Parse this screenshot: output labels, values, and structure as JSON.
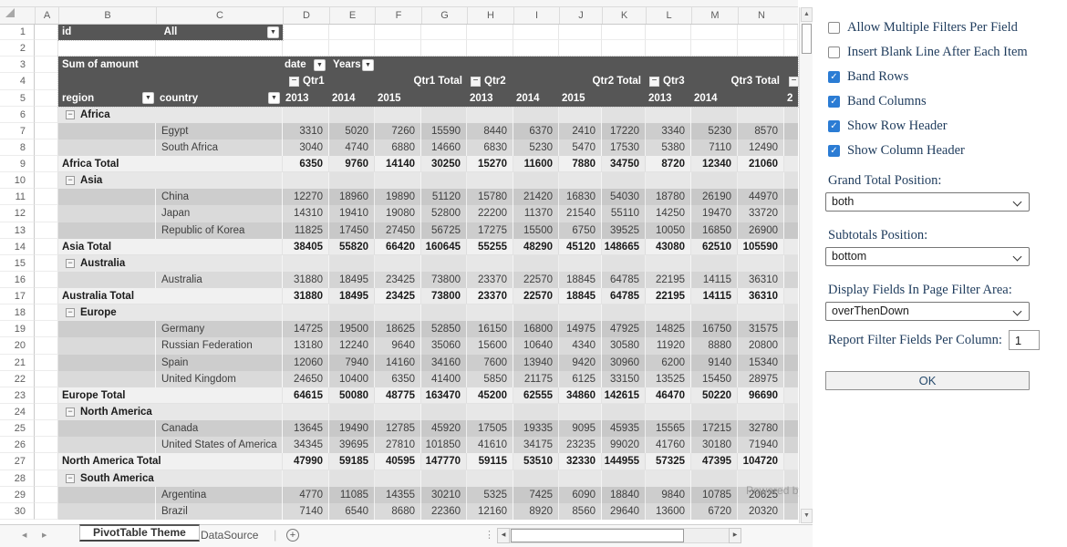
{
  "sheet": {
    "column_letters": [
      "A",
      "B",
      "C",
      "D",
      "E",
      "F",
      "G",
      "H",
      "I",
      "J",
      "K",
      "L",
      "M",
      "N"
    ],
    "row_count": 30,
    "page_filter": {
      "field": "id",
      "value": "All"
    },
    "pivot": {
      "measure": "Sum of amount",
      "column_field": "date",
      "column_subfield": "Years",
      "row_field_1": "region",
      "row_field_2": "country",
      "quarters": [
        {
          "label": "Qtr1",
          "years": [
            "2013",
            "2014",
            "2015"
          ],
          "total_label": "Qtr1 Total"
        },
        {
          "label": "Qtr2",
          "years": [
            "2013",
            "2014",
            "2015"
          ],
          "total_label": "Qtr2 Total"
        },
        {
          "label": "Qtr3",
          "years": [
            "2013",
            "2014"
          ],
          "total_label": "Qtr3 Total"
        }
      ],
      "clipped_next_year_fragment": "2"
    },
    "groups": [
      {
        "region": "Africa",
        "countries": [
          {
            "name": "Egypt",
            "values": [
              3310,
              5020,
              7260,
              15590,
              8440,
              6370,
              2410,
              17220,
              3340,
              5230,
              8570
            ]
          },
          {
            "name": "South Africa",
            "values": [
              3040,
              4740,
              6880,
              14660,
              6830,
              5230,
              5470,
              17530,
              5380,
              7110,
              12490
            ]
          }
        ],
        "total_label": "Africa Total",
        "total": [
          6350,
          9760,
          14140,
          30250,
          15270,
          11600,
          7880,
          34750,
          8720,
          12340,
          21060
        ]
      },
      {
        "region": "Asia",
        "countries": [
          {
            "name": "China",
            "values": [
              12270,
              18960,
              19890,
              51120,
              15780,
              21420,
              16830,
              54030,
              18780,
              26190,
              44970
            ]
          },
          {
            "name": "Japan",
            "values": [
              14310,
              19410,
              19080,
              52800,
              22200,
              11370,
              21540,
              55110,
              14250,
              19470,
              33720
            ]
          },
          {
            "name": "Republic of Korea",
            "values": [
              11825,
              17450,
              27450,
              56725,
              17275,
              15500,
              6750,
              39525,
              10050,
              16850,
              26900
            ]
          }
        ],
        "total_label": "Asia Total",
        "total": [
          38405,
          55820,
          66420,
          160645,
          55255,
          48290,
          45120,
          148665,
          43080,
          62510,
          105590
        ]
      },
      {
        "region": "Australia",
        "countries": [
          {
            "name": "Australia",
            "values": [
              31880,
              18495,
              23425,
              73800,
              23370,
              22570,
              18845,
              64785,
              22195,
              14115,
              36310
            ]
          }
        ],
        "total_label": "Australia Total",
        "total": [
          31880,
          18495,
          23425,
          73800,
          23370,
          22570,
          18845,
          64785,
          22195,
          14115,
          36310
        ]
      },
      {
        "region": "Europe",
        "countries": [
          {
            "name": "Germany",
            "values": [
              14725,
              19500,
              18625,
              52850,
              16150,
              16800,
              14975,
              47925,
              14825,
              16750,
              31575
            ]
          },
          {
            "name": "Russian Federation",
            "values": [
              13180,
              12240,
              9640,
              35060,
              15600,
              10640,
              4340,
              30580,
              11920,
              8880,
              20800
            ]
          },
          {
            "name": "Spain",
            "values": [
              12060,
              7940,
              14160,
              34160,
              7600,
              13940,
              9420,
              30960,
              6200,
              9140,
              15340
            ]
          },
          {
            "name": "United Kingdom",
            "values": [
              24650,
              10400,
              6350,
              41400,
              5850,
              21175,
              6125,
              33150,
              13525,
              15450,
              28975
            ]
          }
        ],
        "total_label": "Europe Total",
        "total": [
          64615,
          50080,
          48775,
          163470,
          45200,
          62555,
          34860,
          142615,
          46470,
          50220,
          96690
        ]
      },
      {
        "region": "North America",
        "countries": [
          {
            "name": "Canada",
            "values": [
              13645,
              19490,
              12785,
              45920,
              17505,
              19335,
              9095,
              45935,
              15565,
              17215,
              32780
            ]
          },
          {
            "name": "United States of America",
            "values": [
              34345,
              39695,
              27810,
              101850,
              41610,
              34175,
              23235,
              99020,
              41760,
              30180,
              71940
            ]
          }
        ],
        "total_label": "North America Total",
        "total": [
          47990,
          59185,
          40595,
          147770,
          59115,
          53510,
          32330,
          144955,
          57325,
          47395,
          104720
        ]
      },
      {
        "region": "South America",
        "countries": [
          {
            "name": "Argentina",
            "values": [
              4770,
              11085,
              14355,
              30210,
              5325,
              7425,
              6090,
              18840,
              9840,
              10785,
              20625
            ]
          },
          {
            "name": "Brazil",
            "values": [
              7140,
              6540,
              8680,
              22360,
              12160,
              8920,
              8560,
              29640,
              13600,
              6720,
              20320
            ]
          }
        ],
        "total_label": null,
        "total": null
      }
    ],
    "watermark": "Powered by",
    "tabs": [
      {
        "label": "PivotTable Theme",
        "active": true
      },
      {
        "label": "DataSource",
        "active": false
      }
    ]
  },
  "side_panel": {
    "checkboxes": [
      {
        "label": "Allow Multiple Filters Per Field",
        "checked": false
      },
      {
        "label": "Insert Blank Line After Each Item",
        "checked": false
      },
      {
        "label": "Band Rows",
        "checked": true
      },
      {
        "label": "Band Columns",
        "checked": true
      },
      {
        "label": "Show Row Header",
        "checked": true
      },
      {
        "label": "Show Column Header",
        "checked": true
      }
    ],
    "selects": [
      {
        "label": "Grand Total Position:",
        "value": "both"
      },
      {
        "label": "Subtotals Position:",
        "value": "bottom"
      },
      {
        "label": "Display Fields In Page Filter Area:",
        "value": "overThenDown"
      }
    ],
    "filter_fields": {
      "label": "Report Filter Fields Per Column:",
      "value": "1"
    },
    "ok_label": "OK",
    "accent_color": "#2b7cd4"
  }
}
